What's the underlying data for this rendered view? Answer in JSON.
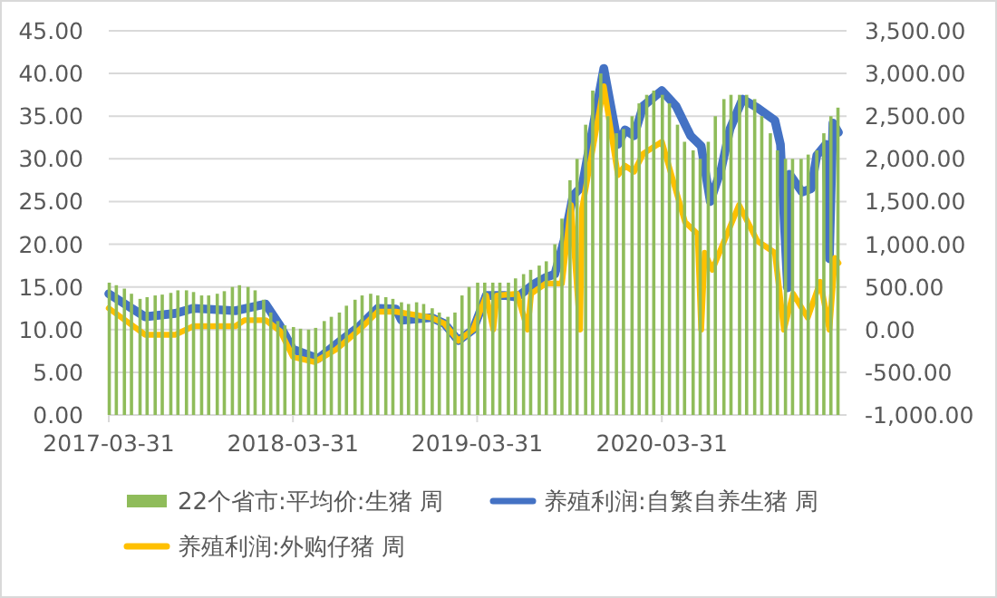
{
  "chart_data": {
    "type": "bar",
    "xlim": [
      "2017-03-31",
      "2021-04-01"
    ],
    "xticks": [
      "2017-03-31",
      "2018-03-31",
      "2019-03-31",
      "2020-03-31"
    ],
    "ylim": [
      0,
      45
    ],
    "yticks": [
      {
        "value": 0,
        "label": "0.00"
      },
      {
        "value": 5,
        "label": "5.00"
      },
      {
        "value": 10,
        "label": "10.00"
      },
      {
        "value": 15,
        "label": "15.00"
      },
      {
        "value": 20,
        "label": "20.00"
      },
      {
        "value": 25,
        "label": "25.00"
      },
      {
        "value": 30,
        "label": "30.00"
      },
      {
        "value": 35,
        "label": "35.00"
      },
      {
        "value": 40,
        "label": "40.00"
      },
      {
        "value": 45,
        "label": "45.00"
      }
    ],
    "y2lim": [
      -1000,
      3500
    ],
    "y2ticks": [
      {
        "value": -1000,
        "label": "-1,000.00"
      },
      {
        "value": -500,
        "label": "-500.00"
      },
      {
        "value": 0,
        "label": "0.00"
      },
      {
        "value": 500,
        "label": "500.00"
      },
      {
        "value": 1000,
        "label": "1,000.00"
      },
      {
        "value": 1500,
        "label": "1,500.00"
      },
      {
        "value": 2000,
        "label": "2,000.00"
      },
      {
        "value": 2500,
        "label": "2,500.00"
      },
      {
        "value": 3000,
        "label": "3,000.00"
      },
      {
        "value": 3500,
        "label": "3,500.00"
      }
    ],
    "grid": "y",
    "legend": "bottom",
    "series": [
      {
        "name": "22个省市:平均价:生猪 周",
        "color": "#8fbc5a",
        "x": [
          "2017-04-01",
          "2017-04-15",
          "2017-05-01",
          "2017-05-15",
          "2017-06-01",
          "2017-06-15",
          "2017-07-01",
          "2017-07-15",
          "2017-08-01",
          "2017-08-15",
          "2017-09-01",
          "2017-09-15",
          "2017-10-01",
          "2017-10-15",
          "2017-11-01",
          "2017-11-15",
          "2017-12-01",
          "2017-12-15",
          "2018-01-01",
          "2018-01-15",
          "2018-02-01",
          "2018-02-15",
          "2018-03-01",
          "2018-03-15",
          "2018-04-01",
          "2018-04-15",
          "2018-05-01",
          "2018-05-15",
          "2018-06-01",
          "2018-06-15",
          "2018-07-01",
          "2018-07-15",
          "2018-08-01",
          "2018-08-15",
          "2018-09-01",
          "2018-09-15",
          "2018-10-01",
          "2018-10-15",
          "2018-11-01",
          "2018-11-15",
          "2018-12-01",
          "2018-12-15",
          "2019-01-01",
          "2019-01-15",
          "2019-02-01",
          "2019-02-15",
          "2019-03-01",
          "2019-03-15",
          "2019-04-01",
          "2019-04-15",
          "2019-05-01",
          "2019-05-15",
          "2019-06-01",
          "2019-06-15",
          "2019-07-01",
          "2019-07-15",
          "2019-08-01",
          "2019-08-15",
          "2019-09-01",
          "2019-09-15",
          "2019-10-01",
          "2019-10-15",
          "2019-11-01",
          "2019-11-15",
          "2019-12-01",
          "2019-12-15",
          "2020-01-01",
          "2020-01-15",
          "2020-02-01",
          "2020-02-15",
          "2020-03-01",
          "2020-03-15",
          "2020-04-01",
          "2020-04-15",
          "2020-05-01",
          "2020-05-15",
          "2020-06-01",
          "2020-06-15",
          "2020-07-01",
          "2020-07-15",
          "2020-08-01",
          "2020-08-15",
          "2020-09-01",
          "2020-09-15",
          "2020-10-01",
          "2020-10-15",
          "2020-11-01",
          "2020-11-15",
          "2020-12-01",
          "2020-12-15",
          "2021-01-01",
          "2021-01-15",
          "2021-02-01",
          "2021-02-15",
          "2021-03-01",
          "2021-03-15"
        ],
        "values": [
          15.5,
          15.2,
          14.8,
          14.2,
          13.6,
          13.8,
          14.0,
          14.1,
          14.3,
          14.6,
          14.6,
          14.4,
          14.0,
          14.0,
          14.2,
          14.5,
          15.0,
          15.2,
          15.0,
          14.6,
          13.5,
          12.0,
          11.0,
          10.5,
          10.3,
          10.1,
          10.0,
          10.2,
          11.0,
          11.5,
          12.0,
          12.8,
          13.5,
          14.0,
          14.2,
          14.0,
          13.8,
          13.6,
          13.2,
          13.0,
          13.2,
          13.0,
          12.5,
          12.0,
          11.5,
          12.0,
          14.0,
          15.0,
          15.5,
          15.5,
          15.5,
          15.5,
          15.5,
          16.0,
          16.5,
          17.0,
          17.5,
          18.0,
          20.0,
          23.0,
          27.5,
          30.0,
          34.0,
          38.0,
          40.0,
          35.0,
          33.0,
          33.5,
          35.0,
          36.5,
          37.5,
          38.0,
          37.5,
          36.5,
          34.0,
          32.0,
          31.0,
          30.0,
          32.0,
          35.0,
          37.0,
          37.5,
          37.5,
          37.5,
          37.0,
          35.0,
          33.0,
          31.0,
          30.0,
          30.0,
          30.0,
          30.5,
          31.0,
          33.0,
          35.0,
          36.0
        ]
      },
      {
        "name": "养殖利润:自繁自养生猪 周",
        "type": "line",
        "axis": "y2",
        "color": "#4472c4",
        "x": [
          "2017-03-31",
          "2017-06-11",
          "2017-08-10",
          "2017-09-15",
          "2017-12-07",
          "2018-02-05",
          "2018-03-06",
          "2018-03-31",
          "2018-05-20",
          "2018-06-25",
          "2018-08-10",
          "2018-09-15",
          "2018-10-21",
          "2018-11-01",
          "2018-12-31",
          "2019-01-25",
          "2019-02-22",
          "2019-03-23",
          "2019-04-18",
          "2019-05-24",
          "2019-06-18",
          "2019-07-23",
          "2019-08-14",
          "2019-09-01",
          "2019-09-19",
          "2019-10-07",
          "2019-10-25",
          "2019-12-07",
          "2020-01-04",
          "2020-01-18",
          "2020-02-05",
          "2020-02-23",
          "2020-03-31",
          "2020-04-28",
          "2020-05-27",
          "2020-06-17",
          "2020-06-28",
          "2020-07-05",
          "2020-07-27",
          "2020-08-13",
          "2020-09-07",
          "2020-10-06",
          "2020-11-10",
          "2020-11-21",
          "2020-12-05",
          "2020-12-09",
          "2021-01-03",
          "2021-01-21",
          "2021-02-01",
          "2021-02-19",
          "2021-02-26",
          "2021-03-05",
          "2021-03-16"
        ],
        "values": [
          420,
          150,
          190,
          250,
          220,
          300,
          40,
          -230,
          -340,
          -170,
          40,
          250,
          240,
          110,
          140,
          70,
          -130,
          0,
          400,
          400,
          380,
          540,
          610,
          650,
          1040,
          1570,
          1680,
          3060,
          2170,
          2340,
          2270,
          2620,
          2800,
          2620,
          2270,
          2150,
          1750,
          1500,
          1890,
          2350,
          2700,
          2600,
          2450,
          2170,
          490,
          1820,
          1610,
          1650,
          2040,
          2170,
          830,
          2420,
          2310
        ]
      },
      {
        "name": "养殖利润:外购仔猪 周",
        "type": "line",
        "axis": "y2",
        "color": "#ffc000",
        "x": [
          "2017-03-31",
          "2017-06-11",
          "2017-08-10",
          "2017-09-15",
          "2017-12-07",
          "2017-12-25",
          "2018-02-05",
          "2018-03-06",
          "2018-03-31",
          "2018-05-13",
          "2018-06-25",
          "2018-08-10",
          "2018-09-15",
          "2018-10-21",
          "2018-12-31",
          "2019-01-25",
          "2019-02-22",
          "2019-03-23",
          "2019-04-18",
          "2019-05-02",
          "2019-05-09",
          "2019-06-18",
          "2019-07-09",
          "2019-07-16",
          "2019-08-14",
          "2019-09-15",
          "2019-10-03",
          "2019-10-21",
          "2019-10-25",
          "2019-12-07",
          "2020-01-04",
          "2020-01-18",
          "2020-02-05",
          "2020-02-23",
          "2020-03-31",
          "2020-05-16",
          "2020-06-10",
          "2020-06-17",
          "2020-06-24",
          "2020-07-09",
          "2020-08-31",
          "2020-10-06",
          "2020-11-10",
          "2020-11-28",
          "2020-12-16",
          "2021-01-14",
          "2021-02-08",
          "2021-02-26",
          "2021-03-09",
          "2021-03-16"
        ],
        "values": [
          250,
          -60,
          -60,
          40,
          40,
          110,
          110,
          -20,
          -320,
          -380,
          -230,
          0,
          210,
          210,
          140,
          70,
          -130,
          0,
          400,
          0,
          400,
          420,
          0,
          420,
          540,
          540,
          1460,
          0,
          1420,
          2850,
          1810,
          1920,
          1850,
          2060,
          2200,
          1260,
          1120,
          0,
          900,
          700,
          1460,
          1040,
          900,
          0,
          420,
          140,
          560,
          0,
          840,
          780
        ]
      }
    ]
  }
}
